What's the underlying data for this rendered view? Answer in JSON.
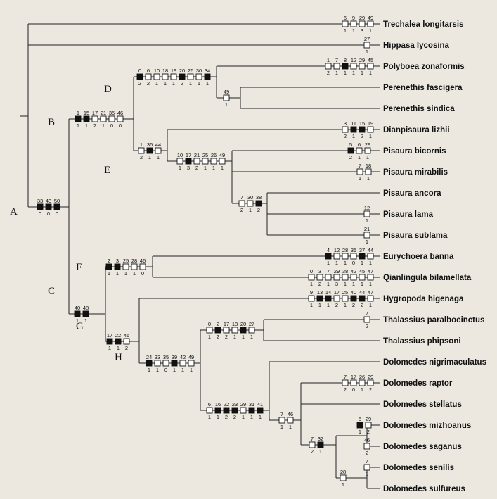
{
  "taxa": [
    "Trechalea longitarsis",
    "Hippasa lycosina",
    "Polyboea zonaformis",
    "Perenethis fascigera",
    "Perenethis sindica",
    "Dianpisaura lizhii",
    "Pisaura bicornis",
    "Pisaura mirabilis",
    "Pisaura ancora",
    "Pisaura lama",
    "Pisaura sublama",
    "Eurychoera banna",
    "Qianlingula bilamellata",
    "Hygropoda higenaga",
    "Thalassius paralbocinctus",
    "Thalassius phipsoni",
    "Dolomedes nigrimaculatus",
    "Dolomedes raptor",
    "Dolomedes stellatus",
    "Dolomedes mizhoanus",
    "Dolomedes saganus",
    "Dolomedes senilis",
    "Dolomedes sulfureus"
  ],
  "clades": [
    "A",
    "B",
    "C",
    "D",
    "E",
    "F",
    "G",
    "H"
  ],
  "characters": [
    {
      "id": "trech",
      "chars": [
        "6",
        "9",
        "29",
        "49"
      ],
      "states": [
        "1",
        "1",
        "3",
        "1"
      ],
      "filled": [
        0,
        0,
        0,
        0
      ]
    },
    {
      "id": "hipp",
      "chars": [
        "27"
      ],
      "states": [
        "1"
      ],
      "filled": [
        0
      ]
    },
    {
      "id": "poly",
      "chars": [
        "1",
        "7",
        "8",
        "12",
        "29",
        "45"
      ],
      "states": [
        "2",
        "1",
        "1",
        "1",
        "1",
        "1"
      ],
      "filled": [
        0,
        0,
        1,
        0,
        0,
        0
      ]
    },
    {
      "id": "nodeA",
      "chars": [
        "33",
        "43",
        "50"
      ],
      "states": [
        "0",
        "0",
        "0"
      ],
      "filled": [
        1,
        1,
        1
      ]
    },
    {
      "id": "nodeB",
      "chars": [
        "1",
        "15",
        "17",
        "21",
        "35",
        "46"
      ],
      "states": [
        "1",
        "1",
        "2",
        "1",
        "0",
        "0"
      ],
      "filled": [
        1,
        1,
        0,
        0,
        0,
        0
      ]
    },
    {
      "id": "nodeD",
      "chars": [
        "0",
        "6",
        "10",
        "18",
        "19",
        "20",
        "26",
        "30",
        "34"
      ],
      "states": [
        "2",
        "2",
        "1",
        "1",
        "1",
        "2",
        "1",
        "1",
        "1"
      ],
      "filled": [
        1,
        0,
        0,
        0,
        0,
        1,
        0,
        0,
        1
      ]
    },
    {
      "id": "nodePer",
      "chars": [
        "49"
      ],
      "states": [
        "1"
      ],
      "filled": [
        0
      ]
    },
    {
      "id": "dian",
      "chars": [
        "3",
        "11",
        "15",
        "19"
      ],
      "states": [
        "2",
        "1",
        "2",
        "1"
      ],
      "filled": [
        0,
        1,
        1,
        0
      ]
    },
    {
      "id": "bico",
      "chars": [
        "5",
        "6",
        "29"
      ],
      "states": [
        "2",
        "1",
        "1"
      ],
      "filled": [
        1,
        0,
        0
      ]
    },
    {
      "id": "mira",
      "chars": [
        "7",
        "18"
      ],
      "states": [
        "1",
        "1"
      ],
      "filled": [
        0,
        0
      ]
    },
    {
      "id": "nodeE",
      "chars": [
        "1",
        "36",
        "44"
      ],
      "states": [
        "2",
        "1",
        "1"
      ],
      "filled": [
        0,
        1,
        0
      ]
    },
    {
      "id": "nodePis",
      "chars": [
        "10",
        "17",
        "21",
        "25",
        "26",
        "49"
      ],
      "states": [
        "1",
        "3",
        "2",
        "1",
        "1",
        "1"
      ],
      "filled": [
        0,
        1,
        0,
        0,
        0,
        0
      ]
    },
    {
      "id": "nodeAnc",
      "chars": [
        "7",
        "30",
        "38"
      ],
      "states": [
        "2",
        "1",
        "2"
      ],
      "filled": [
        0,
        0,
        1
      ]
    },
    {
      "id": "lama",
      "chars": [
        "12"
      ],
      "states": [
        "1"
      ],
      "filled": [
        0
      ]
    },
    {
      "id": "subl",
      "chars": [
        "21"
      ],
      "states": [
        "1"
      ],
      "filled": [
        0
      ]
    },
    {
      "id": "eury",
      "chars": [
        "4",
        "12",
        "28",
        "35",
        "37",
        "44"
      ],
      "states": [
        "1",
        "1",
        "1",
        "0",
        "1",
        "1"
      ],
      "filled": [
        1,
        0,
        0,
        0,
        1,
        0
      ]
    },
    {
      "id": "qian",
      "chars": [
        "0",
        "3",
        "7",
        "29",
        "38",
        "42",
        "45",
        "47"
      ],
      "states": [
        "1",
        "2",
        "1",
        "3",
        "1",
        "1",
        "1",
        "1"
      ],
      "filled": [
        0,
        0,
        0,
        0,
        0,
        0,
        0,
        0
      ]
    },
    {
      "id": "nodeF",
      "chars": [
        "2",
        "3",
        "25",
        "28",
        "46"
      ],
      "states": [
        "1",
        "1",
        "1",
        "1",
        "0"
      ],
      "filled": [
        1,
        1,
        0,
        0,
        0
      ]
    },
    {
      "id": "nodeC",
      "chars": [
        "40",
        "48"
      ],
      "states": [
        "1",
        "1"
      ],
      "filled": [
        1,
        1
      ]
    },
    {
      "id": "hygr",
      "chars": [
        "9",
        "13",
        "14",
        "17",
        "25",
        "40",
        "44",
        "47"
      ],
      "states": [
        "1",
        "1",
        "1",
        "2",
        "1",
        "2",
        "2",
        "1"
      ],
      "filled": [
        0,
        1,
        1,
        0,
        0,
        1,
        1,
        0
      ]
    },
    {
      "id": "nodeG",
      "chars": [
        "17",
        "22",
        "46"
      ],
      "states": [
        "1",
        "1",
        "2"
      ],
      "filled": [
        1,
        1,
        0
      ]
    },
    {
      "id": "para",
      "chars": [
        "7"
      ],
      "states": [
        "2"
      ],
      "filled": [
        0
      ]
    },
    {
      "id": "nodeTha",
      "chars": [
        "0",
        "2",
        "17",
        "18",
        "20",
        "27"
      ],
      "states": [
        "1",
        "2",
        "2",
        "1",
        "1",
        "1"
      ],
      "filled": [
        0,
        1,
        0,
        0,
        1,
        0
      ]
    },
    {
      "id": "nodeH",
      "chars": [
        "24",
        "33",
        "35",
        "39",
        "42",
        "49"
      ],
      "states": [
        "1",
        "1",
        "0",
        "1",
        "1",
        "1"
      ],
      "filled": [
        1,
        0,
        0,
        1,
        0,
        0
      ]
    },
    {
      "id": "nodeDol",
      "chars": [
        "6",
        "16",
        "22",
        "23",
        "29",
        "31",
        "41"
      ],
      "states": [
        "1",
        "1",
        "2",
        "2",
        "1",
        "1",
        "1"
      ],
      "filled": [
        0,
        1,
        1,
        1,
        0,
        1,
        1
      ]
    },
    {
      "id": "rapt",
      "chars": [
        "7",
        "17",
        "26",
        "29"
      ],
      "states": [
        "2",
        "0",
        "1",
        "2"
      ],
      "filled": [
        0,
        0,
        0,
        0
      ]
    },
    {
      "id": "nodeSte",
      "chars": [
        "7",
        "46"
      ],
      "states": [
        "1",
        "1"
      ],
      "filled": [
        0,
        0
      ]
    },
    {
      "id": "mizh",
      "chars": [
        "5",
        "29"
      ],
      "states": [
        "1",
        "2"
      ],
      "filled": [
        1,
        0
      ]
    },
    {
      "id": "saga",
      "chars": [
        "46"
      ],
      "states": [
        "2"
      ],
      "filled": [
        0
      ]
    },
    {
      "id": "nodeMiz",
      "chars": [
        "7",
        "32"
      ],
      "states": [
        "2",
        "1"
      ],
      "filled": [
        0,
        1
      ]
    },
    {
      "id": "seni",
      "chars": [
        "7"
      ],
      "states": [
        "1"
      ],
      "filled": [
        0
      ]
    },
    {
      "id": "nodeSen",
      "chars": [
        "28"
      ],
      "states": [
        "1"
      ],
      "filled": [
        0
      ]
    }
  ]
}
